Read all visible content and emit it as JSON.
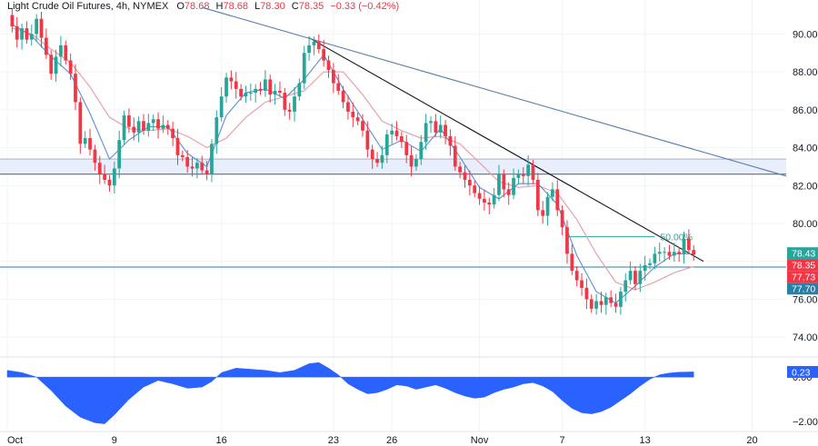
{
  "header": {
    "symbol": "Light Crude Oil Futures, 4h, NYMEX",
    "open_label": "O",
    "open": "78.68",
    "high_label": "H",
    "high": "78.68",
    "low_label": "L",
    "low": "78.30",
    "close_label": "C",
    "close": "78.35",
    "change": "−0.33 (−0.42%)"
  },
  "colors": {
    "up": "#26a69a",
    "down": "#f23645",
    "fast_ma": "#5b8fd6",
    "slow_ma": "#e9a0a8",
    "osc": "#2962ff",
    "zone": "#e8eefb",
    "trend_short": "#131722",
    "trend_long": "#5b7fb0",
    "support": "#2a7fa6",
    "fib": "#26a69a"
  },
  "chart_data": {
    "type": "candlestick",
    "title": "Light Crude Oil Futures, 4h, NYMEX",
    "y_axis": {
      "ylim": [
        73.0,
        91.6
      ],
      "ticks": [
        "74.00",
        "76.00",
        "78.00",
        "80.00",
        "82.00",
        "84.00",
        "86.00",
        "88.00",
        "90.00"
      ],
      "tick_values": [
        74,
        76,
        78,
        80,
        82,
        84,
        86,
        88,
        90
      ]
    },
    "x_axis": {
      "ticks": [
        {
          "label": "Oct",
          "x": 0
        },
        {
          "label": "9",
          "x": 22
        },
        {
          "label": "16",
          "x": 44
        },
        {
          "label": "23",
          "x": 67
        },
        {
          "label": "26",
          "x": 79
        },
        {
          "label": "Nov",
          "x": 97
        },
        {
          "label": "7",
          "x": 114
        },
        {
          "label": "13",
          "x": 131
        },
        {
          "label": "20",
          "x": 153
        }
      ],
      "xlim": [
        0,
        160
      ]
    },
    "close_path": [
      [
        0,
        91.0
      ],
      [
        1,
        90.4
      ],
      [
        2,
        89.7
      ],
      [
        3,
        90.3
      ],
      [
        4,
        89.7
      ],
      [
        5,
        90.0
      ],
      [
        6,
        90.8
      ],
      [
        7,
        89.8
      ],
      [
        8,
        88.9
      ],
      [
        9,
        87.9
      ],
      [
        10,
        88.8
      ],
      [
        11,
        89.4
      ],
      [
        12,
        88.6
      ],
      [
        13,
        87.9
      ],
      [
        14,
        86.4
      ],
      [
        15,
        84.2
      ],
      [
        16,
        84.5
      ],
      [
        17,
        83.9
      ],
      [
        18,
        83.2
      ],
      [
        19,
        82.6
      ],
      [
        20,
        82.3
      ],
      [
        21,
        82.0
      ],
      [
        22,
        82.9
      ],
      [
        23,
        84.4
      ],
      [
        24,
        85.7
      ],
      [
        25,
        85.1
      ],
      [
        26,
        84.8
      ],
      [
        27,
        85.4
      ],
      [
        28,
        84.9
      ],
      [
        29,
        85.3
      ],
      [
        30,
        85.5
      ],
      [
        31,
        85.0
      ],
      [
        32,
        85.2
      ],
      [
        33,
        85.0
      ],
      [
        34,
        84.5
      ],
      [
        35,
        83.6
      ],
      [
        36,
        83.5
      ],
      [
        37,
        83.0
      ],
      [
        38,
        82.9
      ],
      [
        39,
        83.2
      ],
      [
        40,
        82.8
      ],
      [
        41,
        82.6
      ],
      [
        42,
        84.2
      ],
      [
        43,
        85.6
      ],
      [
        44,
        86.7
      ],
      [
        45,
        87.7
      ],
      [
        46,
        87.5
      ],
      [
        47,
        87.1
      ],
      [
        48,
        86.7
      ],
      [
        49,
        86.9
      ],
      [
        50,
        86.9
      ],
      [
        51,
        87.1
      ],
      [
        52,
        87.0
      ],
      [
        53,
        87.6
      ],
      [
        54,
        86.8
      ],
      [
        55,
        87.0
      ],
      [
        56,
        86.9
      ],
      [
        57,
        86.0
      ],
      [
        58,
        85.9
      ],
      [
        59,
        86.7
      ],
      [
        60,
        87.4
      ],
      [
        61,
        89.0
      ],
      [
        62,
        89.4
      ],
      [
        63,
        89.6
      ],
      [
        64,
        89.2
      ],
      [
        65,
        88.6
      ],
      [
        66,
        88.1
      ],
      [
        67,
        87.4
      ],
      [
        68,
        87.0
      ],
      [
        69,
        86.4
      ],
      [
        70,
        85.9
      ],
      [
        71,
        85.6
      ],
      [
        72,
        85.4
      ],
      [
        73,
        84.9
      ],
      [
        74,
        83.9
      ],
      [
        75,
        83.4
      ],
      [
        76,
        83.2
      ],
      [
        77,
        83.6
      ],
      [
        78,
        84.7
      ],
      [
        79,
        84.9
      ],
      [
        80,
        84.6
      ],
      [
        81,
        84.3
      ],
      [
        82,
        83.6
      ],
      [
        83,
        83.0
      ],
      [
        84,
        83.4
      ],
      [
        85,
        84.3
      ],
      [
        86,
        85.3
      ],
      [
        87,
        85.4
      ],
      [
        88,
        84.8
      ],
      [
        89,
        85.2
      ],
      [
        90,
        84.6
      ],
      [
        91,
        84.1
      ],
      [
        92,
        83.0
      ],
      [
        93,
        82.7
      ],
      [
        94,
        82.3
      ],
      [
        95,
        82.0
      ],
      [
        96,
        81.6
      ],
      [
        97,
        81.3
      ],
      [
        98,
        81.1
      ],
      [
        99,
        81.0
      ],
      [
        100,
        81.5
      ],
      [
        101,
        82.6
      ],
      [
        102,
        81.8
      ],
      [
        103,
        81.5
      ],
      [
        104,
        82.4
      ],
      [
        105,
        82.6
      ],
      [
        106,
        82.5
      ],
      [
        107,
        83.1
      ],
      [
        108,
        82.3
      ],
      [
        109,
        80.7
      ],
      [
        110,
        80.4
      ],
      [
        111,
        81.4
      ],
      [
        112,
        81.8
      ],
      [
        113,
        80.7
      ],
      [
        114,
        79.8
      ],
      [
        115,
        78.4
      ],
      [
        116,
        77.5
      ],
      [
        117,
        77.0
      ],
      [
        118,
        76.6
      ],
      [
        119,
        76.0
      ],
      [
        120,
        75.5
      ],
      [
        121,
        75.9
      ],
      [
        122,
        75.7
      ],
      [
        123,
        76.1
      ],
      [
        124,
        75.8
      ],
      [
        125,
        75.6
      ],
      [
        126,
        76.4
      ],
      [
        127,
        77.0
      ],
      [
        128,
        77.5
      ],
      [
        129,
        76.8
      ],
      [
        130,
        77.5
      ],
      [
        131,
        77.8
      ],
      [
        132,
        77.9
      ],
      [
        133,
        78.4
      ],
      [
        134,
        78.5
      ],
      [
        135,
        78.5
      ],
      [
        136,
        78.3
      ],
      [
        137,
        78.5
      ],
      [
        138,
        78.4
      ],
      [
        139,
        79.2
      ],
      [
        140,
        78.6
      ],
      [
        141,
        78.35
      ]
    ],
    "fast_ma": [
      [
        1,
        90.5
      ],
      [
        5,
        89.9
      ],
      [
        9,
        88.8
      ],
      [
        13,
        87.9
      ],
      [
        17,
        85.8
      ],
      [
        21,
        83.4
      ],
      [
        25,
        84.4
      ],
      [
        29,
        85.1
      ],
      [
        33,
        85.1
      ],
      [
        37,
        83.7
      ],
      [
        41,
        83.0
      ],
      [
        45,
        85.7
      ],
      [
        49,
        86.9
      ],
      [
        53,
        87.1
      ],
      [
        57,
        86.6
      ],
      [
        61,
        87.6
      ],
      [
        65,
        88.9
      ],
      [
        69,
        87.1
      ],
      [
        73,
        85.5
      ],
      [
        77,
        83.9
      ],
      [
        81,
        84.4
      ],
      [
        85,
        83.8
      ],
      [
        89,
        85.0
      ],
      [
        93,
        83.5
      ],
      [
        97,
        81.9
      ],
      [
        101,
        81.3
      ],
      [
        105,
        82.1
      ],
      [
        109,
        82.1
      ],
      [
        113,
        81.0
      ],
      [
        117,
        78.3
      ],
      [
        121,
        76.4
      ],
      [
        125,
        75.8
      ],
      [
        129,
        76.7
      ],
      [
        133,
        77.7
      ],
      [
        137,
        78.4
      ],
      [
        141,
        78.4
      ]
    ],
    "slow_ma": [
      [
        1,
        90.3
      ],
      [
        5,
        90.0
      ],
      [
        9,
        89.2
      ],
      [
        13,
        88.5
      ],
      [
        17,
        87.2
      ],
      [
        21,
        85.6
      ],
      [
        25,
        85.0
      ],
      [
        29,
        84.9
      ],
      [
        33,
        85.0
      ],
      [
        37,
        84.6
      ],
      [
        41,
        84.0
      ],
      [
        45,
        84.5
      ],
      [
        49,
        85.6
      ],
      [
        53,
        86.4
      ],
      [
        57,
        86.7
      ],
      [
        61,
        87.0
      ],
      [
        65,
        88.0
      ],
      [
        69,
        88.0
      ],
      [
        73,
        86.8
      ],
      [
        77,
        85.4
      ],
      [
        81,
        84.9
      ],
      [
        85,
        84.5
      ],
      [
        89,
        84.6
      ],
      [
        93,
        84.2
      ],
      [
        97,
        83.2
      ],
      [
        101,
        82.2
      ],
      [
        105,
        81.9
      ],
      [
        109,
        82.0
      ],
      [
        113,
        81.6
      ],
      [
        117,
        80.2
      ],
      [
        121,
        78.4
      ],
      [
        125,
        76.9
      ],
      [
        129,
        76.5
      ],
      [
        133,
        76.9
      ],
      [
        137,
        77.4
      ],
      [
        141,
        77.73
      ]
    ],
    "resistance_zone": {
      "y_low": 82.6,
      "y_high": 83.4
    },
    "support_level": 77.7,
    "trendline_short": {
      "from": [
        62,
        89.8
      ],
      "to": [
        143,
        78.0
      ]
    },
    "trendline_long": {
      "from": [
        40,
        91.4
      ],
      "to": [
        160,
        82.5
      ]
    },
    "fib_level": {
      "label": "50.00%",
      "value": 79.3,
      "x_from": 115,
      "x_to": 133
    },
    "price_badges": [
      {
        "value": 78.43,
        "text": "78.43",
        "color": "#26a69a"
      },
      {
        "value": 78.35,
        "text": "78.35",
        "color": "#f23645"
      },
      {
        "value": 77.73,
        "text": "77.73",
        "color": "#f23645"
      },
      {
        "value": 77.7,
        "text": "77.70",
        "color": "#2a7fa6"
      }
    ],
    "oscillator": {
      "ylim": [
        -2.4,
        0.9
      ],
      "ticks": [
        "0.00",
        "−2.00"
      ],
      "tick_values": [
        0.0,
        -2.0
      ],
      "current_text": "0.23",
      "current": 0.23,
      "values": [
        [
          0,
          0.3
        ],
        [
          3,
          0.2
        ],
        [
          6,
          0.0
        ],
        [
          9,
          -0.6
        ],
        [
          12,
          -1.3
        ],
        [
          15,
          -1.8
        ],
        [
          18,
          -2.05
        ],
        [
          20,
          -2.1
        ],
        [
          22,
          -1.7
        ],
        [
          25,
          -1.0
        ],
        [
          28,
          -0.45
        ],
        [
          31,
          -0.15
        ],
        [
          34,
          -0.3
        ],
        [
          37,
          -0.5
        ],
        [
          40,
          -0.45
        ],
        [
          42,
          -0.2
        ],
        [
          44,
          0.2
        ],
        [
          47,
          0.4
        ],
        [
          50,
          0.35
        ],
        [
          53,
          0.3
        ],
        [
          56,
          0.2
        ],
        [
          59,
          0.3
        ],
        [
          62,
          0.6
        ],
        [
          64,
          0.65
        ],
        [
          66,
          0.4
        ],
        [
          68,
          0.1
        ],
        [
          70,
          -0.3
        ],
        [
          72,
          -0.55
        ],
        [
          74,
          -0.75
        ],
        [
          76,
          -0.7
        ],
        [
          78,
          -0.55
        ],
        [
          80,
          -0.35
        ],
        [
          82,
          -0.4
        ],
        [
          84,
          -0.55
        ],
        [
          86,
          -0.45
        ],
        [
          88,
          -0.35
        ],
        [
          90,
          -0.5
        ],
        [
          92,
          -0.7
        ],
        [
          94,
          -0.85
        ],
        [
          96,
          -0.95
        ],
        [
          98,
          -0.9
        ],
        [
          100,
          -0.7
        ],
        [
          102,
          -0.55
        ],
        [
          104,
          -0.45
        ],
        [
          106,
          -0.3
        ],
        [
          108,
          -0.25
        ],
        [
          110,
          -0.4
        ],
        [
          112,
          -0.65
        ],
        [
          114,
          -1.05
        ],
        [
          116,
          -1.4
        ],
        [
          118,
          -1.6
        ],
        [
          120,
          -1.65
        ],
        [
          122,
          -1.55
        ],
        [
          124,
          -1.35
        ],
        [
          126,
          -1.05
        ],
        [
          128,
          -0.75
        ],
        [
          130,
          -0.4
        ],
        [
          132,
          -0.1
        ],
        [
          134,
          0.1
        ],
        [
          136,
          0.18
        ],
        [
          138,
          0.22
        ],
        [
          141,
          0.23
        ]
      ]
    }
  }
}
